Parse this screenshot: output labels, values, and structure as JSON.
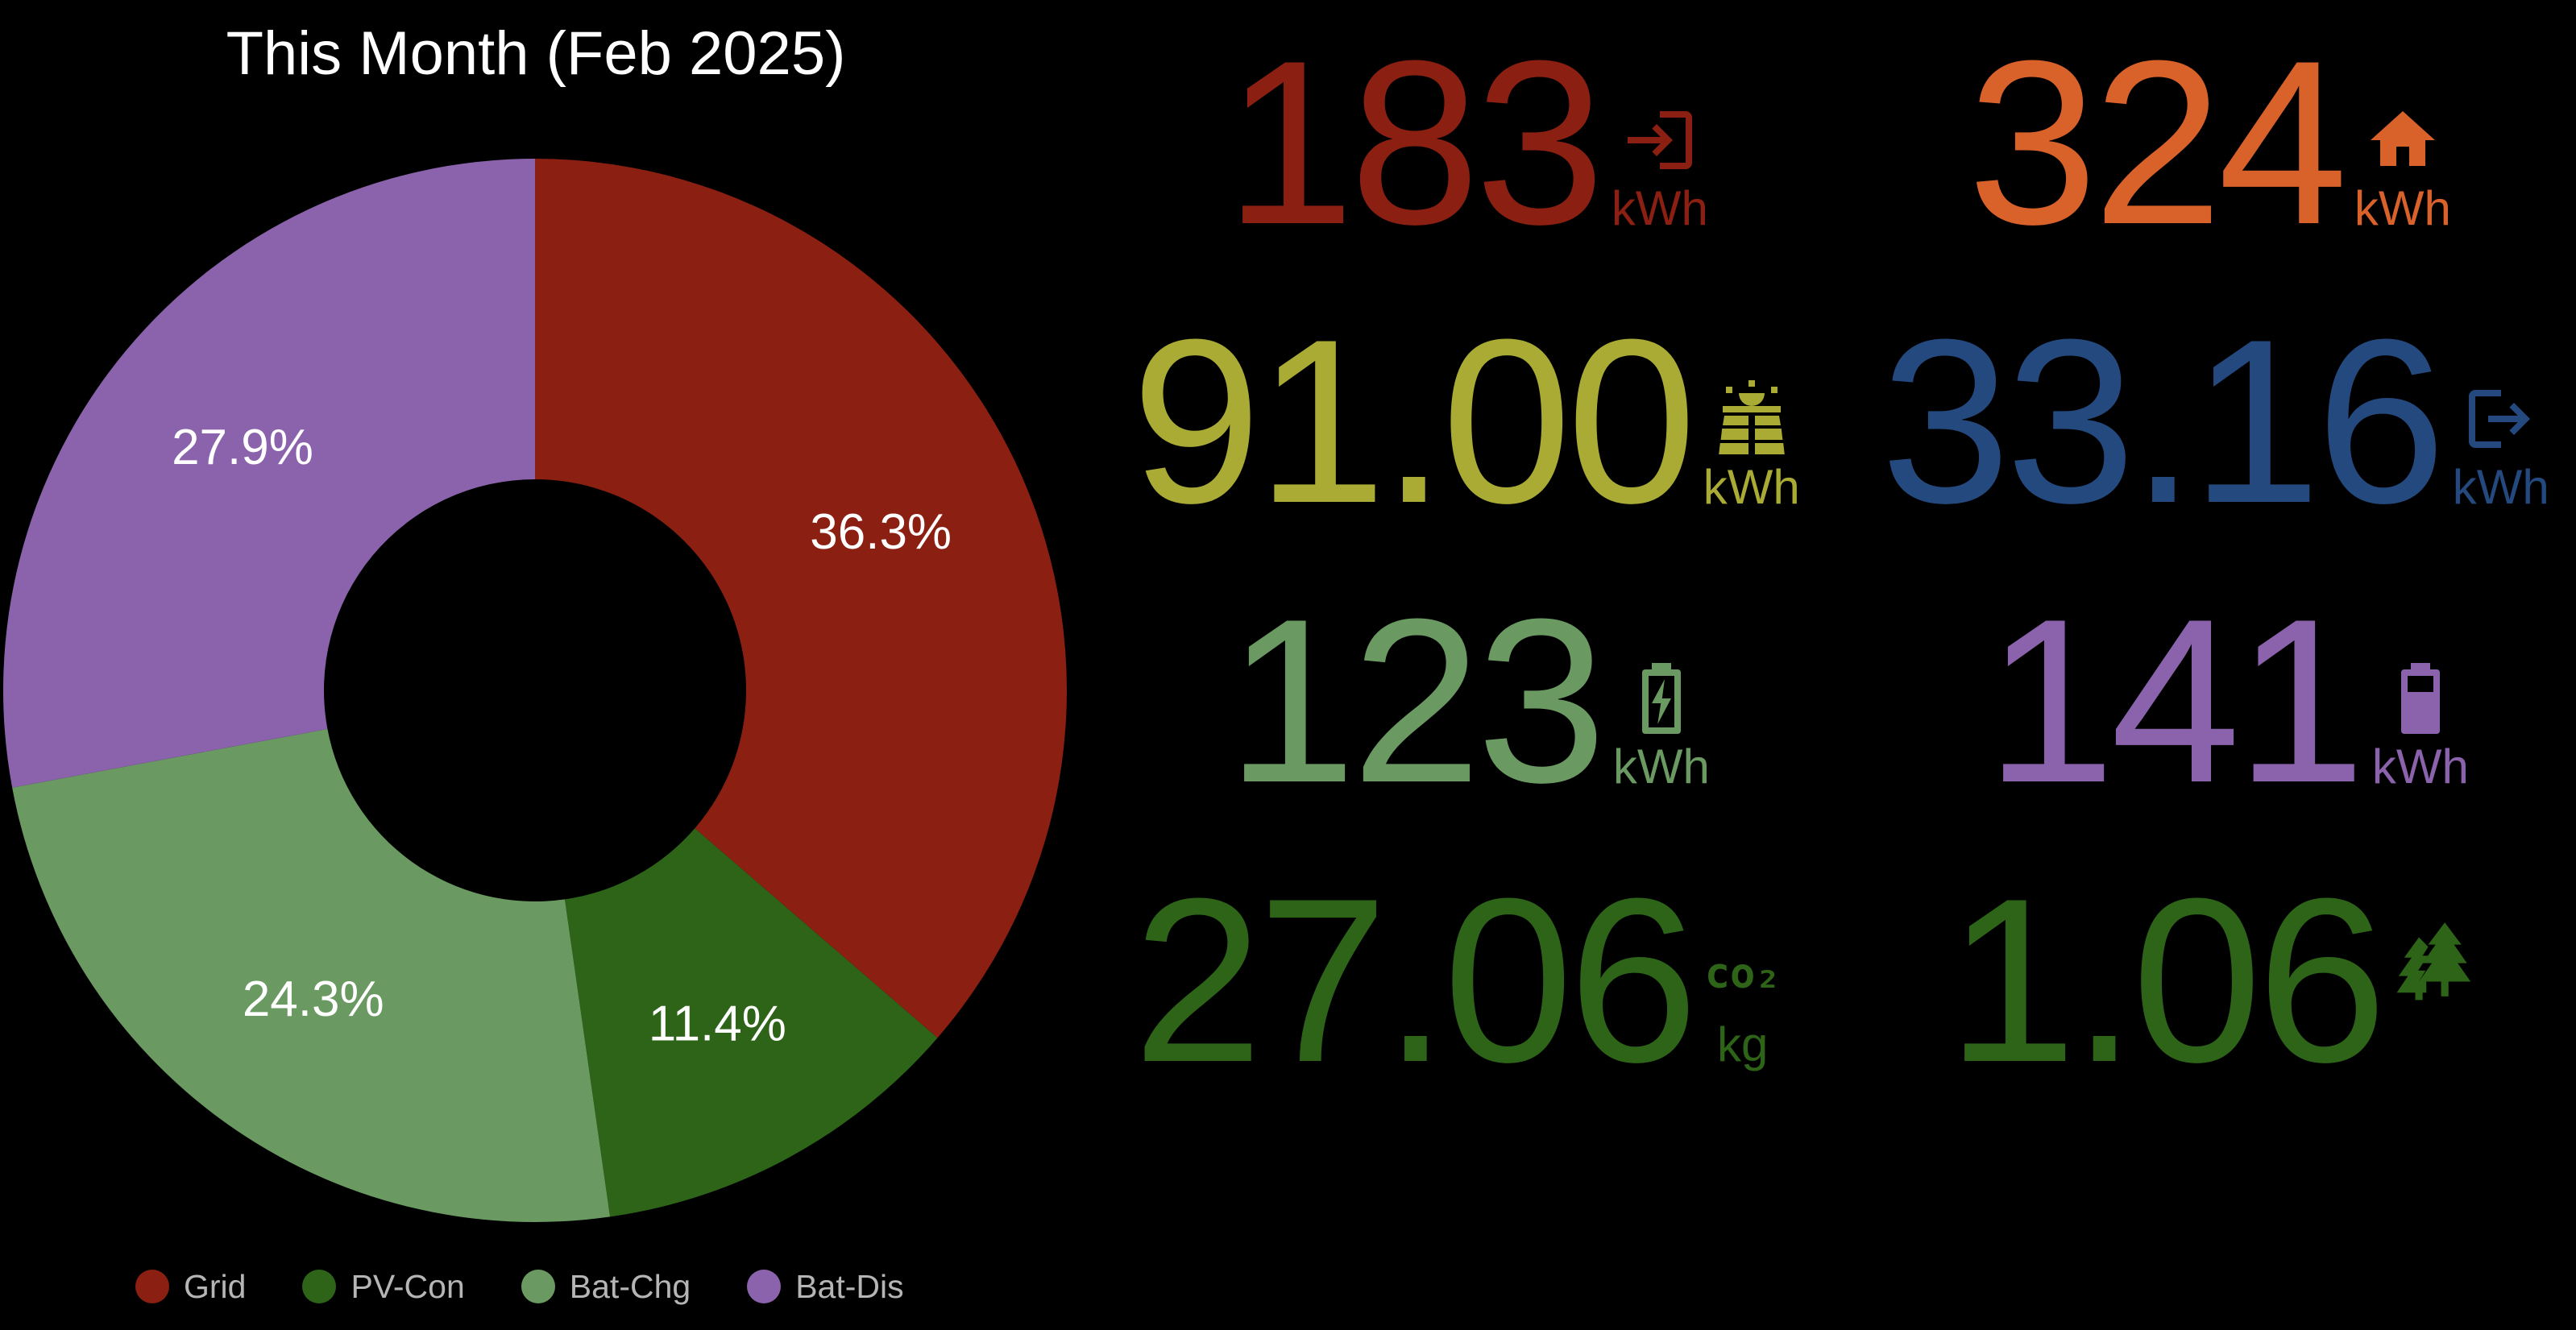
{
  "title": "This Month (Feb 2025)",
  "colors": {
    "grid": "#8b1f12",
    "pv_con": "#2d6418",
    "bat_chg": "#6a9a62",
    "bat_dis": "#8b63ac",
    "home": "#d9612a",
    "solar": "#a9ab35",
    "export": "#24497e",
    "legend_text": "#b5b5b5"
  },
  "chart_data": {
    "type": "pie",
    "donut": true,
    "title": "This Month (Feb 2025)",
    "slices": [
      {
        "label": "Grid",
        "value": 36.3,
        "display": "36.3%",
        "color": "#8b1f12"
      },
      {
        "label": "PV-Con",
        "value": 11.4,
        "display": "11.4%",
        "color": "#2d6418"
      },
      {
        "label": "Bat-Chg",
        "value": 24.3,
        "display": "24.3%",
        "color": "#6a9a62"
      },
      {
        "label": "Bat-Dis",
        "value": 27.9,
        "display": "27.9%",
        "color": "#8b63ac"
      }
    ],
    "legend": [
      "Grid",
      "PV-Con",
      "Bat-Chg",
      "Bat-Dis"
    ],
    "legend_position": "bottom"
  },
  "metrics": {
    "grid_import": {
      "value": "183",
      "unit": "kWh",
      "icon": "grid-import-icon",
      "color": "#8b1f12"
    },
    "home": {
      "value": "324",
      "unit": "kWh",
      "icon": "home-icon",
      "color": "#d9612a"
    },
    "solar": {
      "value": "91.00",
      "unit": "kWh",
      "icon": "solar-panel-icon",
      "color": "#a9ab35"
    },
    "grid_export": {
      "value": "33.16",
      "unit": "kWh",
      "icon": "grid-export-icon",
      "color": "#24497e"
    },
    "battery_charge": {
      "value": "123",
      "unit": "kWh",
      "icon": "battery-charging-icon",
      "color": "#6a9a62"
    },
    "battery_discharge": {
      "value": "141",
      "unit": "kWh",
      "icon": "battery-icon",
      "color": "#8b63ac"
    },
    "co2": {
      "value": "27.06",
      "unit": "kg",
      "icon": "co2-icon",
      "icon_text": "co₂",
      "color": "#2d6418"
    },
    "trees": {
      "value": "1.06",
      "unit": "",
      "icon": "trees-icon",
      "color": "#2d6418"
    }
  }
}
